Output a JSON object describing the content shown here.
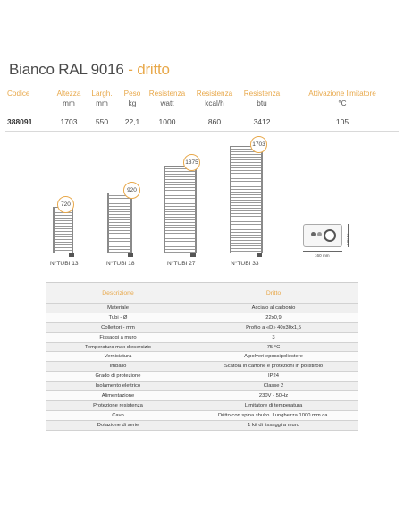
{
  "title": {
    "main": "Bianco RAL 9016",
    "sep": " - ",
    "accent": "dritto"
  },
  "specs": {
    "headers": [
      {
        "label": "Codice",
        "unit": ""
      },
      {
        "label": "Altezza",
        "unit": "mm"
      },
      {
        "label": "Largh.",
        "unit": "mm"
      },
      {
        "label": "Peso",
        "unit": "kg"
      },
      {
        "label": "Resistenza",
        "unit": "watt"
      },
      {
        "label": "Resistenza",
        "unit": "kcal/h"
      },
      {
        "label": "Resistenza",
        "unit": "btu"
      },
      {
        "label": "Attivazione limitatore",
        "unit": "°C"
      }
    ],
    "row": [
      "388091",
      "1703",
      "550",
      "22,1",
      "1000",
      "860",
      "3412",
      "105"
    ]
  },
  "radiators": [
    {
      "height": "720",
      "label": "N°TUBI 13"
    },
    {
      "height": "920",
      "label": "N°TUBI 18"
    },
    {
      "height": "1375",
      "label": "N°TUBI 27"
    },
    {
      "height": "1703",
      "label": "N°TUBI 33"
    }
  ],
  "thermostat": {
    "width_label": "160 mm",
    "height_label": "70 mm"
  },
  "details": {
    "header": [
      "Descrizione",
      "Dritto"
    ],
    "rows": [
      [
        "Materiale",
        "Acciaio al carbonio"
      ],
      [
        "Tubi - Ø",
        "22x0,9"
      ],
      [
        "Collettori - mm",
        "Profilo a «D» 40x30x1,5"
      ],
      [
        "Fissaggi a muro",
        "3"
      ],
      [
        "Temperatura max d'esercizio",
        "75 °C"
      ],
      [
        "Verniciatura",
        "A polveri epossipoliestere"
      ],
      [
        "Imballo",
        "Scatola in cartone e protezioni in polistirolo"
      ],
      [
        "Grado di protezione",
        "IP24"
      ],
      [
        "Isolamento elettrico",
        "Classe 2"
      ],
      [
        "Alimentazione",
        "230V - 50Hz"
      ],
      [
        "Protezione resistenza",
        "Limitatore di temperatura"
      ],
      [
        "Cavo",
        "Dritto con spina shuko. Lunghezza 1000 mm ca."
      ],
      [
        "Dotazione di serie",
        "1 kit di fissaggi a muro"
      ]
    ]
  }
}
